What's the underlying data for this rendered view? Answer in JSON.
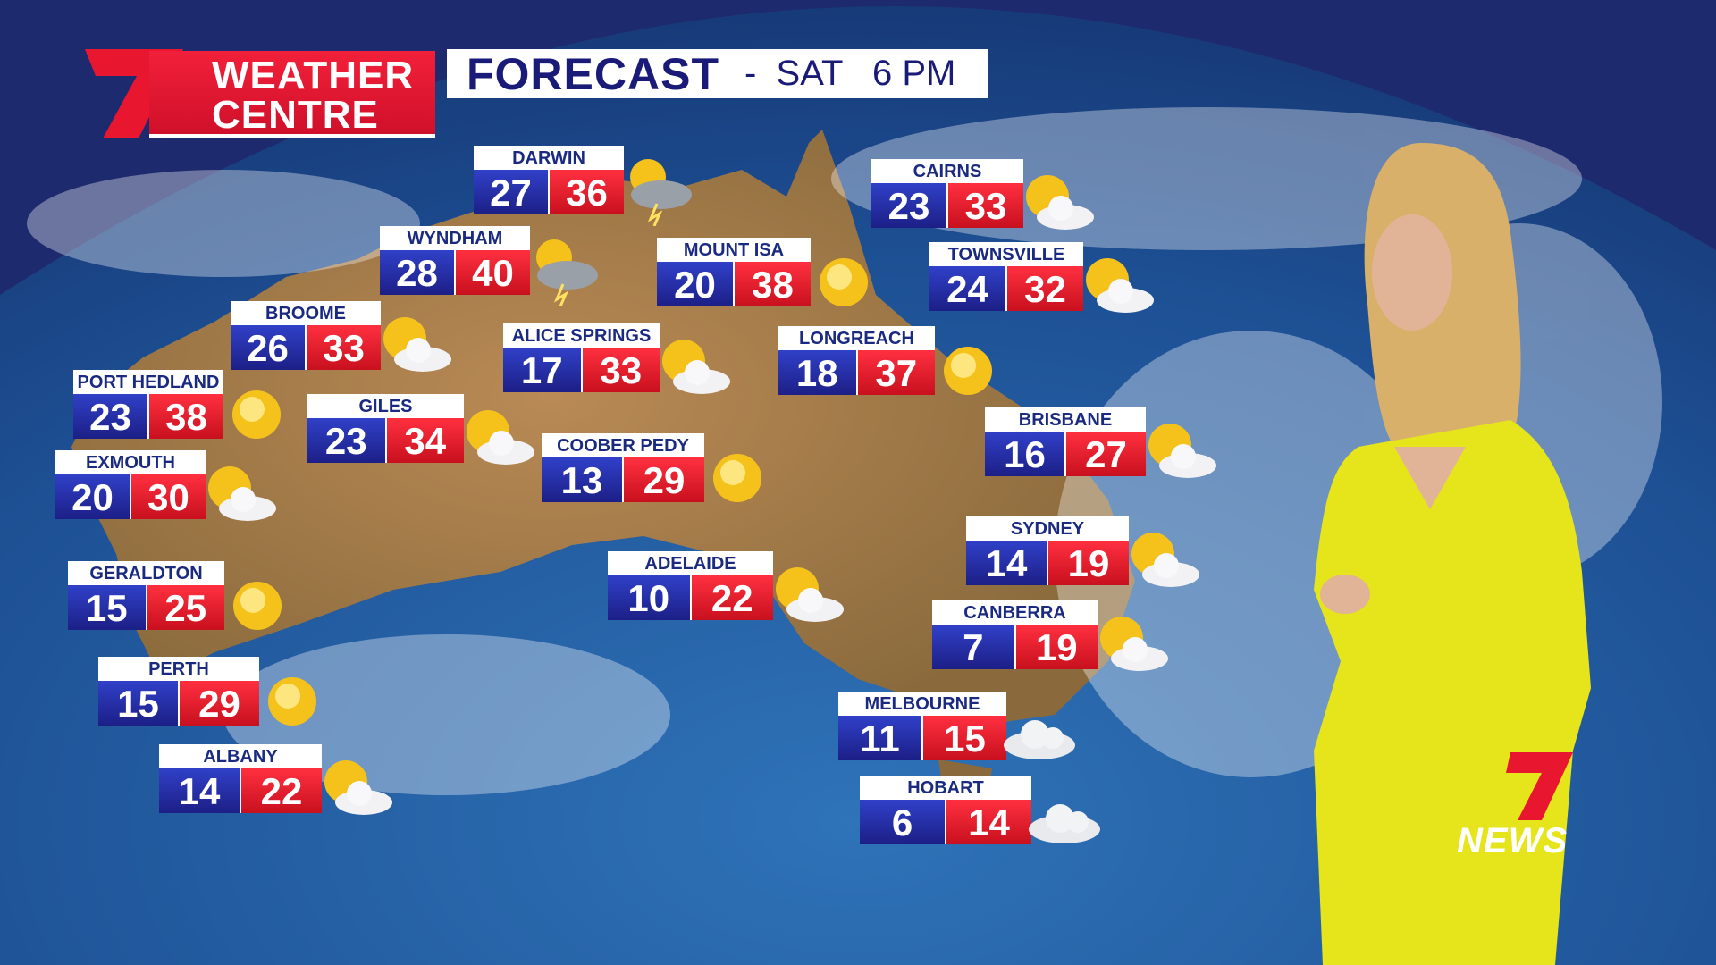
{
  "header": {
    "logo_line1": "WEATHER",
    "logo_line2": "CENTRE",
    "title": "FORECAST",
    "subtitle": "-  SAT   6 PM"
  },
  "colors": {
    "brand_red": "#e8162f",
    "low_blue": "#1f2590",
    "high_red": "#e01424",
    "title_navy": "#1a1a78"
  },
  "cities": [
    {
      "name": "DARWIN",
      "low": "27",
      "high": "36",
      "icon": "storm-icon"
    },
    {
      "name": "WYNDHAM",
      "low": "28",
      "high": "40",
      "icon": "storm-icon"
    },
    {
      "name": "BROOME",
      "low": "26",
      "high": "33",
      "icon": "partly-cloudy-icon"
    },
    {
      "name": "PORT HEDLAND",
      "low": "23",
      "high": "38",
      "icon": "sun-icon"
    },
    {
      "name": "EXMOUTH",
      "low": "20",
      "high": "30",
      "icon": "partly-cloudy-icon"
    },
    {
      "name": "GILES",
      "low": "23",
      "high": "34",
      "icon": "partly-cloudy-icon"
    },
    {
      "name": "GERALDTON",
      "low": "15",
      "high": "25",
      "icon": "sun-icon"
    },
    {
      "name": "PERTH",
      "low": "15",
      "high": "29",
      "icon": "sun-icon"
    },
    {
      "name": "ALBANY",
      "low": "14",
      "high": "22",
      "icon": "partly-cloudy-icon"
    },
    {
      "name": "ALICE SPRINGS",
      "low": "17",
      "high": "33",
      "icon": "partly-cloudy-icon"
    },
    {
      "name": "COOBER PEDY",
      "low": "13",
      "high": "29",
      "icon": "sun-icon"
    },
    {
      "name": "ADELAIDE",
      "low": "10",
      "high": "22",
      "icon": "partly-cloudy-icon"
    },
    {
      "name": "MOUNT ISA",
      "low": "20",
      "high": "38",
      "icon": "sun-icon"
    },
    {
      "name": "LONGREACH",
      "low": "18",
      "high": "37",
      "icon": "sun-icon"
    },
    {
      "name": "CAIRNS",
      "low": "23",
      "high": "33",
      "icon": "partly-cloudy-icon"
    },
    {
      "name": "TOWNSVILLE",
      "low": "24",
      "high": "32",
      "icon": "partly-cloudy-icon"
    },
    {
      "name": "BRISBANE",
      "low": "16",
      "high": "27",
      "icon": "partly-cloudy-icon"
    },
    {
      "name": "SYDNEY",
      "low": "14",
      "high": "19",
      "icon": "partly-cloudy-icon"
    },
    {
      "name": "CANBERRA",
      "low": "7",
      "high": "19",
      "icon": "partly-cloudy-icon"
    },
    {
      "name": "MELBOURNE",
      "low": "11",
      "high": "15",
      "icon": "cloud-icon"
    },
    {
      "name": "HOBART",
      "low": "6",
      "high": "14",
      "icon": "cloud-icon"
    }
  ],
  "watermark": "NEWS"
}
